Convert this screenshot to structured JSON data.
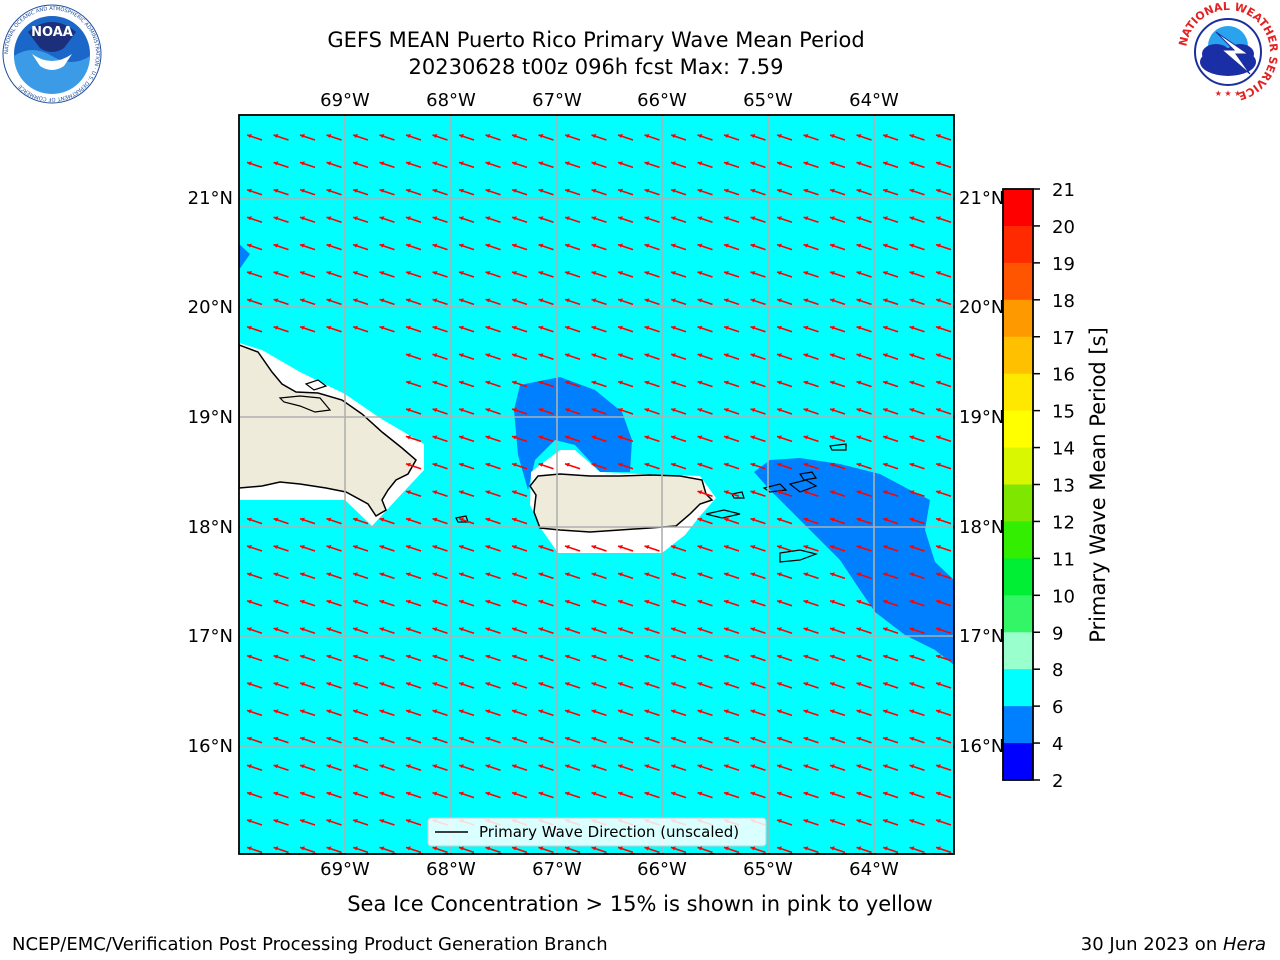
{
  "header": {
    "title": "GEFS MEAN Puerto Rico Primary Wave Mean Period",
    "subtitle": "20230628 t00z 096h fcst   Max: 7.59"
  },
  "map": {
    "lon_ticks": [
      "69°W",
      "68°W",
      "67°W",
      "66°W",
      "65°W",
      "64°W"
    ],
    "lat_ticks": [
      "21°N",
      "20°N",
      "19°N",
      "18°N",
      "17°N",
      "16°N"
    ],
    "ocean_color": "#00ffff",
    "land_color": "#efebdb",
    "low_period_color": "#0080ff",
    "arrow_color": "#ff0000",
    "grid": true,
    "legend_label": "Primary Wave Direction (unscaled)"
  },
  "colorbar": {
    "label": "Primary Wave Mean Period [s]",
    "ticks": [
      "21",
      "20",
      "19",
      "18",
      "17",
      "16",
      "15",
      "14",
      "13",
      "12",
      "11",
      "10",
      "9",
      "8",
      "6",
      "4",
      "2"
    ],
    "colors": [
      "#ff0000",
      "#ff2a00",
      "#ff5500",
      "#ff7700",
      "#ff9900",
      "#ffc000",
      "#ffe800",
      "#ffff00",
      "#d9f700",
      "#b3ee00",
      "#7fe600",
      "#33ee00",
      "#00ee33",
      "#33f566",
      "#99ffcc",
      "#66ffff",
      "#00ffff",
      "#0080ff",
      "#0000ff"
    ]
  },
  "note": "Sea Ice Concentration > 15% is shown in pink to yellow",
  "footer": {
    "left": "NCEP/EMC/Verification Post Processing Product Generation Branch",
    "date": "30 Jun 2023 on ",
    "machine": "Hera"
  },
  "logos": {
    "noaa_text": "NOAA",
    "noaa_ring": "NATIONAL OCEANIC AND ATMOSPHERIC ADMINISTRATION · U.S. DEPARTMENT OF COMMERCE",
    "nws_ring": "NATIONAL WEATHER SERVICE"
  }
}
